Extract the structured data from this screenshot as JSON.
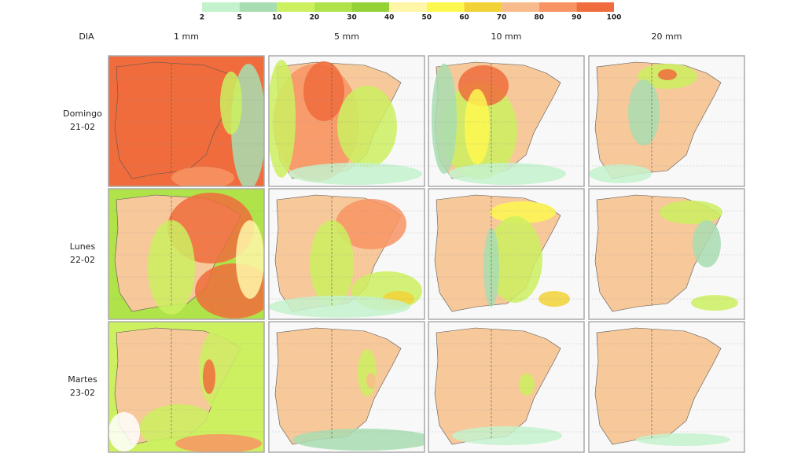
{
  "legend": {
    "labels": [
      "2",
      "5",
      "10",
      "20",
      "30",
      "40",
      "50",
      "60",
      "70",
      "80",
      "90",
      "100"
    ],
    "colors": [
      "#c4f2cc",
      "#a8ddb2",
      "#cdf060",
      "#b0e24a",
      "#94d236",
      "#fff6a8",
      "#fdf850",
      "#f2d236",
      "#f8bc8c",
      "#f89464",
      "#f06c3c"
    ]
  },
  "corner_label": "DIA",
  "columns": [
    "1 mm",
    "5 mm",
    "10 mm",
    "20 mm"
  ],
  "rows": [
    {
      "day": "Domingo",
      "date": "21-02"
    },
    {
      "day": "Lunes",
      "date": "22-02"
    },
    {
      "day": "Martes",
      "date": "23-02"
    }
  ]
}
